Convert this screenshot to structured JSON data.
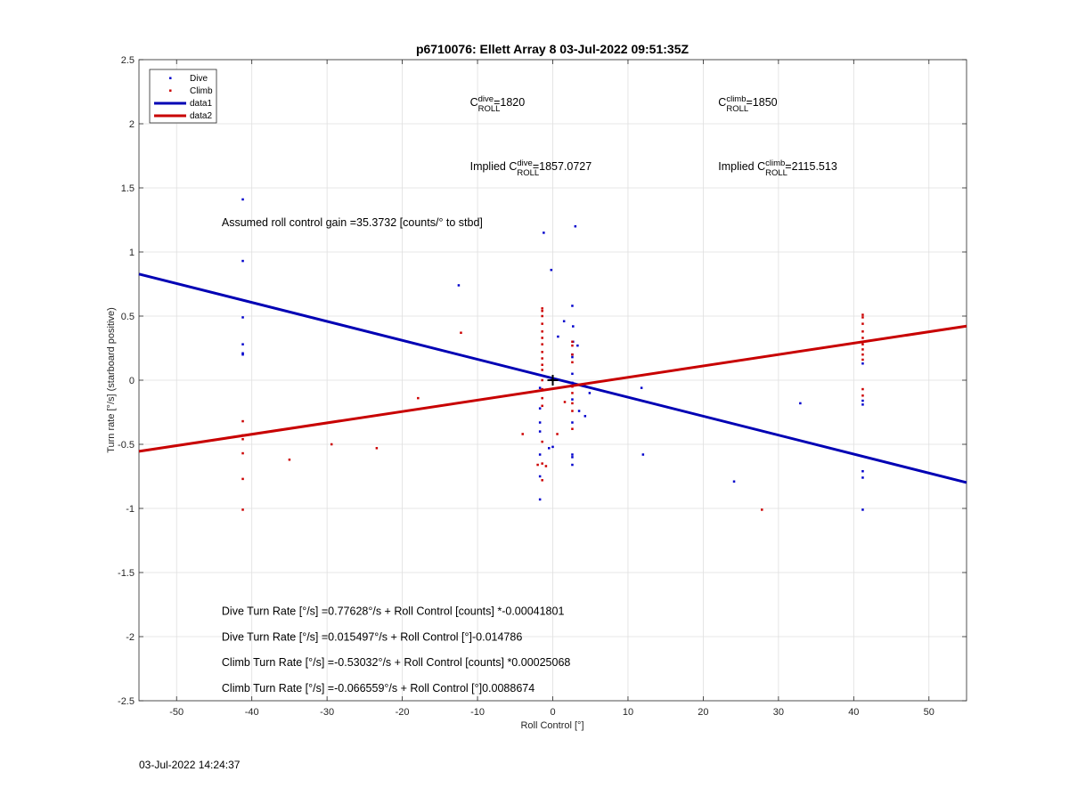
{
  "chart_data": {
    "type": "scatter",
    "title": "p6710076: Ellett Array 8 03-Jul-2022 09:51:35Z",
    "xlabel": "Roll Control [°]",
    "ylabel": "Turn rate [°/s] (starboard positive)",
    "xlim": [
      -55,
      55
    ],
    "ylim": [
      -2.5,
      2.5
    ],
    "xticks": [
      -50,
      -40,
      -30,
      -20,
      -10,
      0,
      10,
      20,
      30,
      40,
      50
    ],
    "yticks": [
      -2.5,
      -2,
      -1.5,
      -1,
      -0.5,
      0,
      0.5,
      1,
      1.5,
      2,
      2.5
    ],
    "xtick_labels": [
      "-50",
      "-40",
      "-30",
      "-20",
      "-10",
      "0",
      "10",
      "20",
      "30",
      "40",
      "50"
    ],
    "ytick_labels": [
      "-2.5",
      "-2",
      "-1.5",
      "-1",
      "-0.5",
      "0",
      "0.5",
      "1",
      "1.5",
      "2",
      "2.5"
    ],
    "grid": true,
    "legend_position": "top-left",
    "series": [
      {
        "name": "Dive",
        "kind": "scatter",
        "color": "#0000cc",
        "points": [
          [
            -41.2,
            1.41
          ],
          [
            -41.2,
            0.93
          ],
          [
            -41.2,
            0.49
          ],
          [
            -41.2,
            0.28
          ],
          [
            -41.2,
            0.21
          ],
          [
            -41.2,
            0.2
          ],
          [
            -12.5,
            0.74
          ],
          [
            -1.2,
            1.15
          ],
          [
            -0.2,
            0.86
          ],
          [
            3.0,
            1.2
          ],
          [
            2.6,
            0.58
          ],
          [
            1.5,
            0.46
          ],
          [
            2.7,
            0.42
          ],
          [
            0.7,
            0.34
          ],
          [
            2.7,
            0.3
          ],
          [
            3.3,
            0.27
          ],
          [
            2.6,
            0.2
          ],
          [
            2.6,
            0.18
          ],
          [
            2.6,
            0.05
          ],
          [
            -1.7,
            0.04
          ],
          [
            -1.7,
            -0.06
          ],
          [
            -1.7,
            -0.22
          ],
          [
            -1.7,
            -0.33
          ],
          [
            -1.7,
            -0.4
          ],
          [
            -1.7,
            -0.58
          ],
          [
            -1.7,
            -0.75
          ],
          [
            -1.7,
            -0.93
          ],
          [
            2.6,
            -0.02
          ],
          [
            2.6,
            -0.15
          ],
          [
            2.6,
            -0.33
          ],
          [
            2.6,
            -0.58
          ],
          [
            2.6,
            -0.6
          ],
          [
            2.6,
            -0.66
          ],
          [
            0.0,
            -0.52
          ],
          [
            -0.5,
            -0.53
          ],
          [
            3.5,
            -0.24
          ],
          [
            4.3,
            -0.28
          ],
          [
            4.9,
            -0.1
          ],
          [
            11.8,
            -0.06
          ],
          [
            12.0,
            -0.58
          ],
          [
            24.1,
            -0.79
          ],
          [
            32.9,
            -0.18
          ],
          [
            41.2,
            0.13
          ],
          [
            41.2,
            -0.16
          ],
          [
            41.2,
            -0.19
          ],
          [
            41.2,
            -0.71
          ],
          [
            41.2,
            -0.76
          ],
          [
            41.2,
            -1.01
          ]
        ]
      },
      {
        "name": "Climb",
        "kind": "scatter",
        "color": "#cc0000",
        "points": [
          [
            -41.2,
            -0.32
          ],
          [
            -41.2,
            -0.43
          ],
          [
            -41.2,
            -0.46
          ],
          [
            -41.2,
            -0.57
          ],
          [
            -41.2,
            -0.77
          ],
          [
            -41.2,
            -1.01
          ],
          [
            -35.0,
            -0.62
          ],
          [
            -29.4,
            -0.5
          ],
          [
            -23.4,
            -0.53
          ],
          [
            -17.9,
            -0.14
          ],
          [
            -12.2,
            0.37
          ],
          [
            -4.0,
            -0.42
          ],
          [
            -1.4,
            0.56
          ],
          [
            -1.4,
            0.54
          ],
          [
            -1.4,
            0.5
          ],
          [
            -1.4,
            0.44
          ],
          [
            -1.4,
            0.38
          ],
          [
            -1.4,
            0.33
          ],
          [
            -1.4,
            0.28
          ],
          [
            -1.4,
            0.22
          ],
          [
            -1.4,
            0.17
          ],
          [
            -1.4,
            0.12
          ],
          [
            -1.4,
            0.08
          ],
          [
            -1.4,
            0.0
          ],
          [
            -1.4,
            -0.07
          ],
          [
            -1.4,
            -0.14
          ],
          [
            -1.4,
            -0.2
          ],
          [
            -1.4,
            -0.48
          ],
          [
            -1.4,
            -0.65
          ],
          [
            -1.4,
            -0.78
          ],
          [
            -2.0,
            -0.66
          ],
          [
            -0.9,
            -0.67
          ],
          [
            0.6,
            -0.42
          ],
          [
            1.6,
            -0.17
          ],
          [
            2.6,
            0.3
          ],
          [
            2.6,
            0.27
          ],
          [
            2.6,
            0.2
          ],
          [
            2.6,
            0.14
          ],
          [
            2.6,
            -0.05
          ],
          [
            2.6,
            -0.1
          ],
          [
            2.6,
            -0.18
          ],
          [
            2.6,
            -0.24
          ],
          [
            2.6,
            -0.38
          ],
          [
            27.8,
            -1.01
          ],
          [
            41.2,
            0.51
          ],
          [
            41.2,
            0.49
          ],
          [
            41.2,
            0.44
          ],
          [
            41.2,
            0.38
          ],
          [
            41.2,
            0.33
          ],
          [
            41.2,
            0.28
          ],
          [
            41.2,
            0.24
          ],
          [
            41.2,
            0.2
          ],
          [
            41.2,
            0.16
          ],
          [
            41.2,
            -0.07
          ],
          [
            41.2,
            -0.12
          ]
        ]
      },
      {
        "name": "data1",
        "kind": "line",
        "color": "#0000b4",
        "line": [
          [
            -55,
            0.828
          ],
          [
            55,
            -0.798
          ]
        ]
      },
      {
        "name": "data2",
        "kind": "line",
        "color": "#c80000",
        "line": [
          [
            -55,
            -0.555
          ],
          [
            55,
            0.422
          ]
        ]
      }
    ],
    "marker": {
      "x": 0.0,
      "y": 0.0,
      "symbol": "plus"
    },
    "annotations": {
      "c_dive": {
        "prefix": "C",
        "sup": "dive",
        "sub": "ROLL",
        "value": "=1820",
        "x": -11,
        "y": 2.14
      },
      "c_climb": {
        "prefix": "C",
        "sup": "climb",
        "sub": "ROLL",
        "value": "=1850",
        "x": 22,
        "y": 2.14
      },
      "implied_dive": {
        "prefix": "Implied C",
        "sup": "dive",
        "sub": "ROLL",
        "value": "=1857.0727",
        "x": -11,
        "y": 1.64
      },
      "implied_climb": {
        "prefix": "Implied C",
        "sup": "climb",
        "sub": "ROLL",
        "value": "=2115.513",
        "x": 22,
        "y": 1.64
      },
      "gain": {
        "text": "Assumed roll control gain =35.3732 [counts/° to stbd]",
        "x": -44,
        "y": 1.2
      },
      "eq1": {
        "text": "Dive Turn Rate [°/s] =0.77628°/s + Roll Control [counts] *-0.00041801",
        "x": -44,
        "y": -1.83
      },
      "eq2": {
        "text": "Dive Turn Rate [°/s] =0.015497°/s + Roll Control [°]-0.014786",
        "x": -44,
        "y": -2.03
      },
      "eq3": {
        "text": "Climb Turn Rate [°/s] =-0.53032°/s + Roll Control [counts] *0.00025068",
        "x": -44,
        "y": -2.23
      },
      "eq4": {
        "text": "Climb Turn Rate [°/s] =-0.066559°/s + Roll Control [°]0.0088674",
        "x": -44,
        "y": -2.43
      }
    }
  },
  "timestamp": "03-Jul-2022 14:24:37"
}
